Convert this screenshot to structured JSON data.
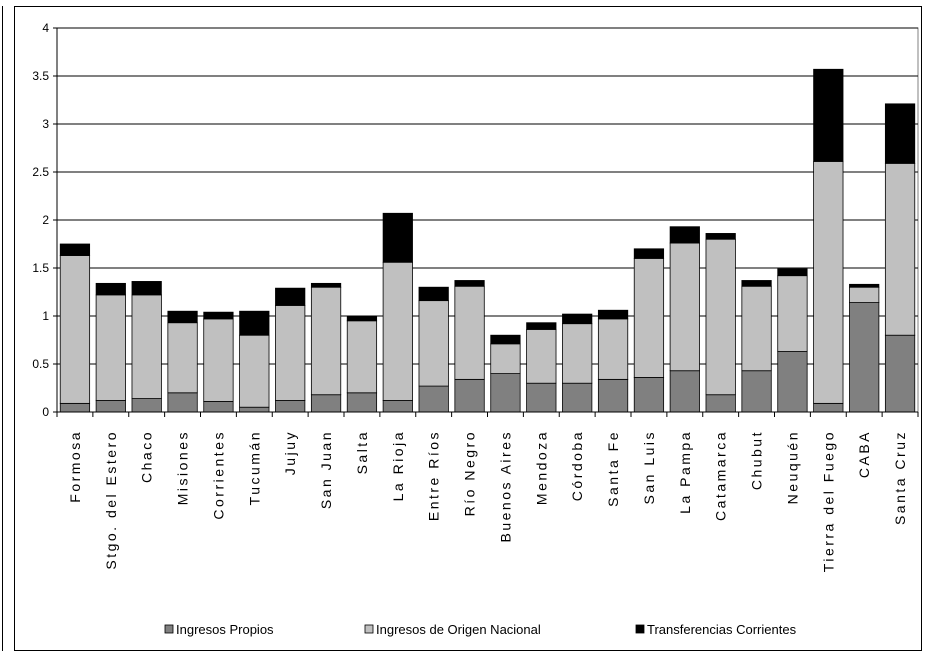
{
  "chart_data": {
    "type": "bar",
    "stacked": true,
    "title": "",
    "xlabel": "",
    "ylabel": "",
    "ylim": [
      0,
      4
    ],
    "yticks": [
      "0",
      "0.5",
      "1",
      "1.5",
      "2",
      "2.5",
      "3",
      "3.5",
      "4"
    ],
    "grid": true,
    "legend_position": "bottom",
    "categories": [
      "Formosa",
      "Stgo. del Estero",
      "Chaco",
      "Misiones",
      "Corrientes",
      "Tucumán",
      "Jujuy",
      "San Juan",
      "Salta",
      "La Rioja",
      "Entre Ríos",
      "Río Negro",
      "Buenos Aires",
      "Mendoza",
      "Córdoba",
      "Santa Fe",
      "San Luis",
      "La Pampa",
      "Catamarca",
      "Chubut",
      "Neuquén",
      "Tierra del Fuego",
      "CABA",
      "Santa Cruz"
    ],
    "series": [
      {
        "name": "Ingresos Propios",
        "color": "#808080",
        "values": [
          0.09,
          0.12,
          0.14,
          0.2,
          0.11,
          0.05,
          0.12,
          0.18,
          0.2,
          0.12,
          0.27,
          0.34,
          0.4,
          0.3,
          0.3,
          0.34,
          0.36,
          0.43,
          0.18,
          0.43,
          0.63,
          0.09,
          1.14,
          0.8
        ]
      },
      {
        "name": "Ingresos de Origen Nacional",
        "color": "#c0c0c0",
        "values": [
          1.54,
          1.1,
          1.08,
          0.73,
          0.86,
          0.75,
          0.99,
          1.12,
          0.75,
          1.44,
          0.89,
          0.97,
          0.31,
          0.56,
          0.62,
          0.63,
          1.24,
          1.33,
          1.62,
          0.88,
          0.79,
          2.52,
          0.16,
          1.79
        ]
      },
      {
        "name": "Transferencias Corrientes",
        "color": "#000000",
        "values": [
          0.12,
          0.12,
          0.14,
          0.12,
          0.07,
          0.25,
          0.18,
          0.04,
          0.05,
          0.51,
          0.14,
          0.06,
          0.09,
          0.07,
          0.1,
          0.09,
          0.1,
          0.17,
          0.06,
          0.06,
          0.07,
          0.96,
          0.03,
          0.62
        ]
      }
    ]
  }
}
